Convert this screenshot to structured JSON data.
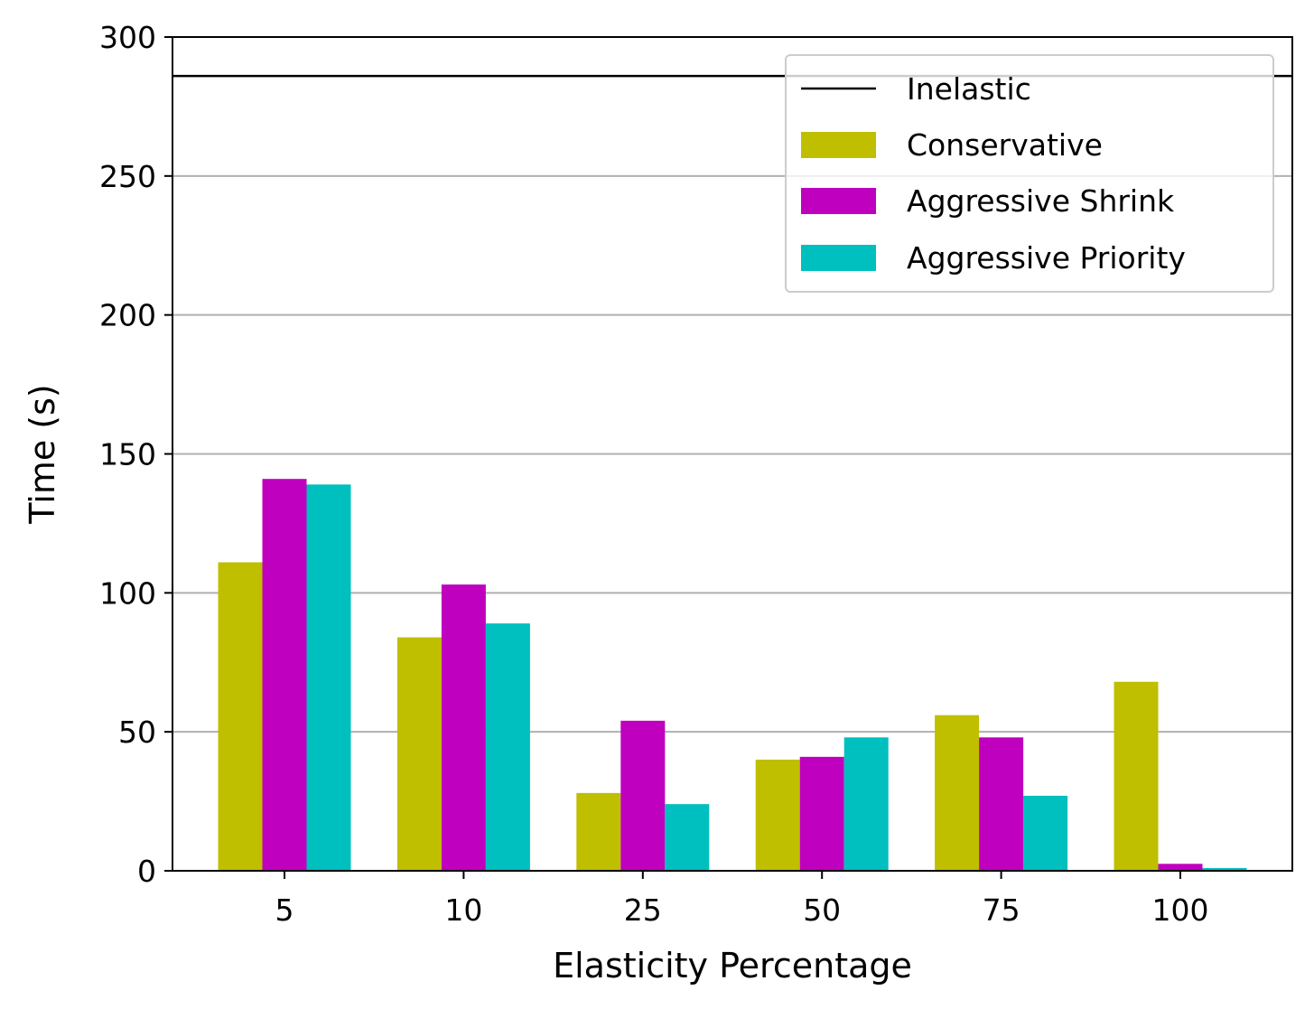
{
  "chart_data": {
    "type": "bar",
    "title": "",
    "xlabel": "Elasticity Percentage",
    "ylabel": "Time (s)",
    "categories": [
      "5",
      "10",
      "25",
      "50",
      "75",
      "100"
    ],
    "ylim": [
      0,
      300
    ],
    "yticks": [
      "0",
      "50",
      "100",
      "150",
      "200",
      "250",
      "300"
    ],
    "grid": "horizontal",
    "reference_line": {
      "name": "Inelastic",
      "value": 286,
      "color": "#000000"
    },
    "series": [
      {
        "name": "Conservative",
        "color": "#bfbf00",
        "values": [
          111,
          84,
          28,
          40,
          56,
          68
        ]
      },
      {
        "name": "Aggressive Shrink",
        "color": "#bf00bf",
        "values": [
          141,
          103,
          54,
          41,
          48,
          2.5
        ]
      },
      {
        "name": "Aggressive Priority",
        "color": "#00bfbf",
        "values": [
          139,
          89,
          24,
          48,
          27,
          1
        ]
      }
    ],
    "legend_position": "top-right"
  }
}
